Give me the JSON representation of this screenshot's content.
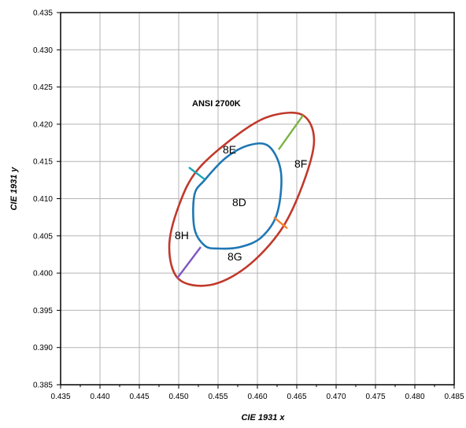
{
  "chart_data": {
    "type": "scatter",
    "title": "",
    "xlabel": "CIE 1931 x",
    "ylabel": "CIE 1931 y",
    "xlim": [
      0.435,
      0.485
    ],
    "ylim": [
      0.385,
      0.435
    ],
    "xticks": [
      "0.435",
      "0.440",
      "0.445",
      "0.450",
      "0.455",
      "0.460",
      "0.465",
      "0.470",
      "0.475",
      "0.480",
      "0.485"
    ],
    "yticks": [
      "0.385",
      "0.390",
      "0.395",
      "0.400",
      "0.405",
      "0.410",
      "0.415",
      "0.420",
      "0.425",
      "0.430",
      "0.435"
    ],
    "grid": true,
    "annotation": "ANSI 2700K",
    "regions": [
      "8D",
      "8E",
      "8F",
      "8G",
      "8H"
    ],
    "outer_ellipse": {
      "color": "#c0392b",
      "points": [
        [
          0.4658,
          0.4212
        ],
        [
          0.4672,
          0.4178
        ],
        [
          0.4658,
          0.412
        ],
        [
          0.463,
          0.4058
        ],
        [
          0.4586,
          0.4008
        ],
        [
          0.454,
          0.3984
        ],
        [
          0.45,
          0.3992
        ],
        [
          0.4488,
          0.4035
        ],
        [
          0.45,
          0.409
        ],
        [
          0.4525,
          0.414
        ],
        [
          0.458,
          0.419
        ],
        [
          0.462,
          0.4212
        ]
      ]
    },
    "inner_ellipse": {
      "color": "#1f77b4",
      "points": [
        [
          0.4615,
          0.417
        ],
        [
          0.463,
          0.4135
        ],
        [
          0.4625,
          0.408
        ],
        [
          0.4605,
          0.4048
        ],
        [
          0.4578,
          0.4035
        ],
        [
          0.455,
          0.4033
        ],
        [
          0.4533,
          0.4037
        ],
        [
          0.452,
          0.406
        ],
        [
          0.452,
          0.4105
        ],
        [
          0.4533,
          0.4125
        ],
        [
          0.456,
          0.4155
        ],
        [
          0.459,
          0.4172
        ]
      ]
    },
    "divider_segments": [
      {
        "from": [
          0.4658,
          0.4212
        ],
        "to": [
          0.4627,
          0.4166
        ],
        "color": "#7cb342"
      },
      {
        "from": [
          0.4621,
          0.4075
        ],
        "to": [
          0.4638,
          0.406
        ],
        "color": "#f58231"
      },
      {
        "from": [
          0.4498,
          0.3993
        ],
        "to": [
          0.4528,
          0.4035
        ],
        "color": "#7e57c2"
      },
      {
        "from": [
          0.4513,
          0.4142
        ],
        "to": [
          0.4533,
          0.4126
        ],
        "color": "#1aa6b7"
      }
    ]
  }
}
